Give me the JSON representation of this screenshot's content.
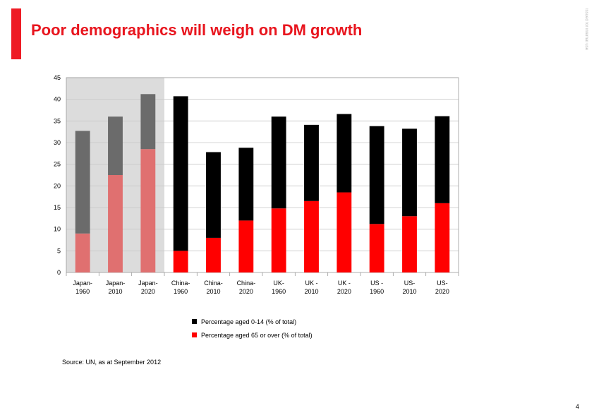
{
  "slide": {
    "title": "Poor demographics will weigh on DM growth",
    "side_note": "Issued for internal use",
    "source": "Source: UN, as at September 2012",
    "page_number": "4",
    "accent_color": "#ee1c25"
  },
  "chart_data": {
    "type": "bar",
    "stacked": true,
    "title": "",
    "xlabel": "",
    "ylabel": "",
    "ylim": [
      0,
      45
    ],
    "yticks": [
      0,
      5,
      10,
      15,
      20,
      25,
      30,
      35,
      40,
      45
    ],
    "grid": true,
    "legend_position": "bottom",
    "categories": [
      [
        "Japan-",
        "1960"
      ],
      [
        "Japan-",
        "2010"
      ],
      [
        "Japan-",
        "2020"
      ],
      [
        "China-",
        "1960"
      ],
      [
        "China-",
        "2010"
      ],
      [
        "China-",
        "2020"
      ],
      [
        "UK-",
        "1960"
      ],
      [
        "UK -",
        "2010"
      ],
      [
        "UK -",
        "2020"
      ],
      [
        "US -",
        "1960"
      ],
      [
        "US-",
        "2010"
      ],
      [
        "US-",
        "2020"
      ]
    ],
    "highlighted_categories": [
      0,
      1,
      2
    ],
    "series": [
      {
        "name": "Percentage aged 65 or over (% of total)",
        "color": "#ff0000",
        "highlight_color": "#e07070",
        "values": [
          9,
          22.5,
          28.5,
          5,
          8,
          12,
          14.8,
          16.5,
          18.5,
          11.2,
          13,
          16
        ]
      },
      {
        "name": "Percentage aged 0-14 (% of total)",
        "color": "#000000",
        "highlight_color": "#6b6b6b",
        "values": [
          23.7,
          13.5,
          12.7,
          35.7,
          19.8,
          16.8,
          21.2,
          17.6,
          18.1,
          22.6,
          20.2,
          20.1
        ]
      }
    ],
    "legend_order": [
      1,
      0
    ]
  }
}
